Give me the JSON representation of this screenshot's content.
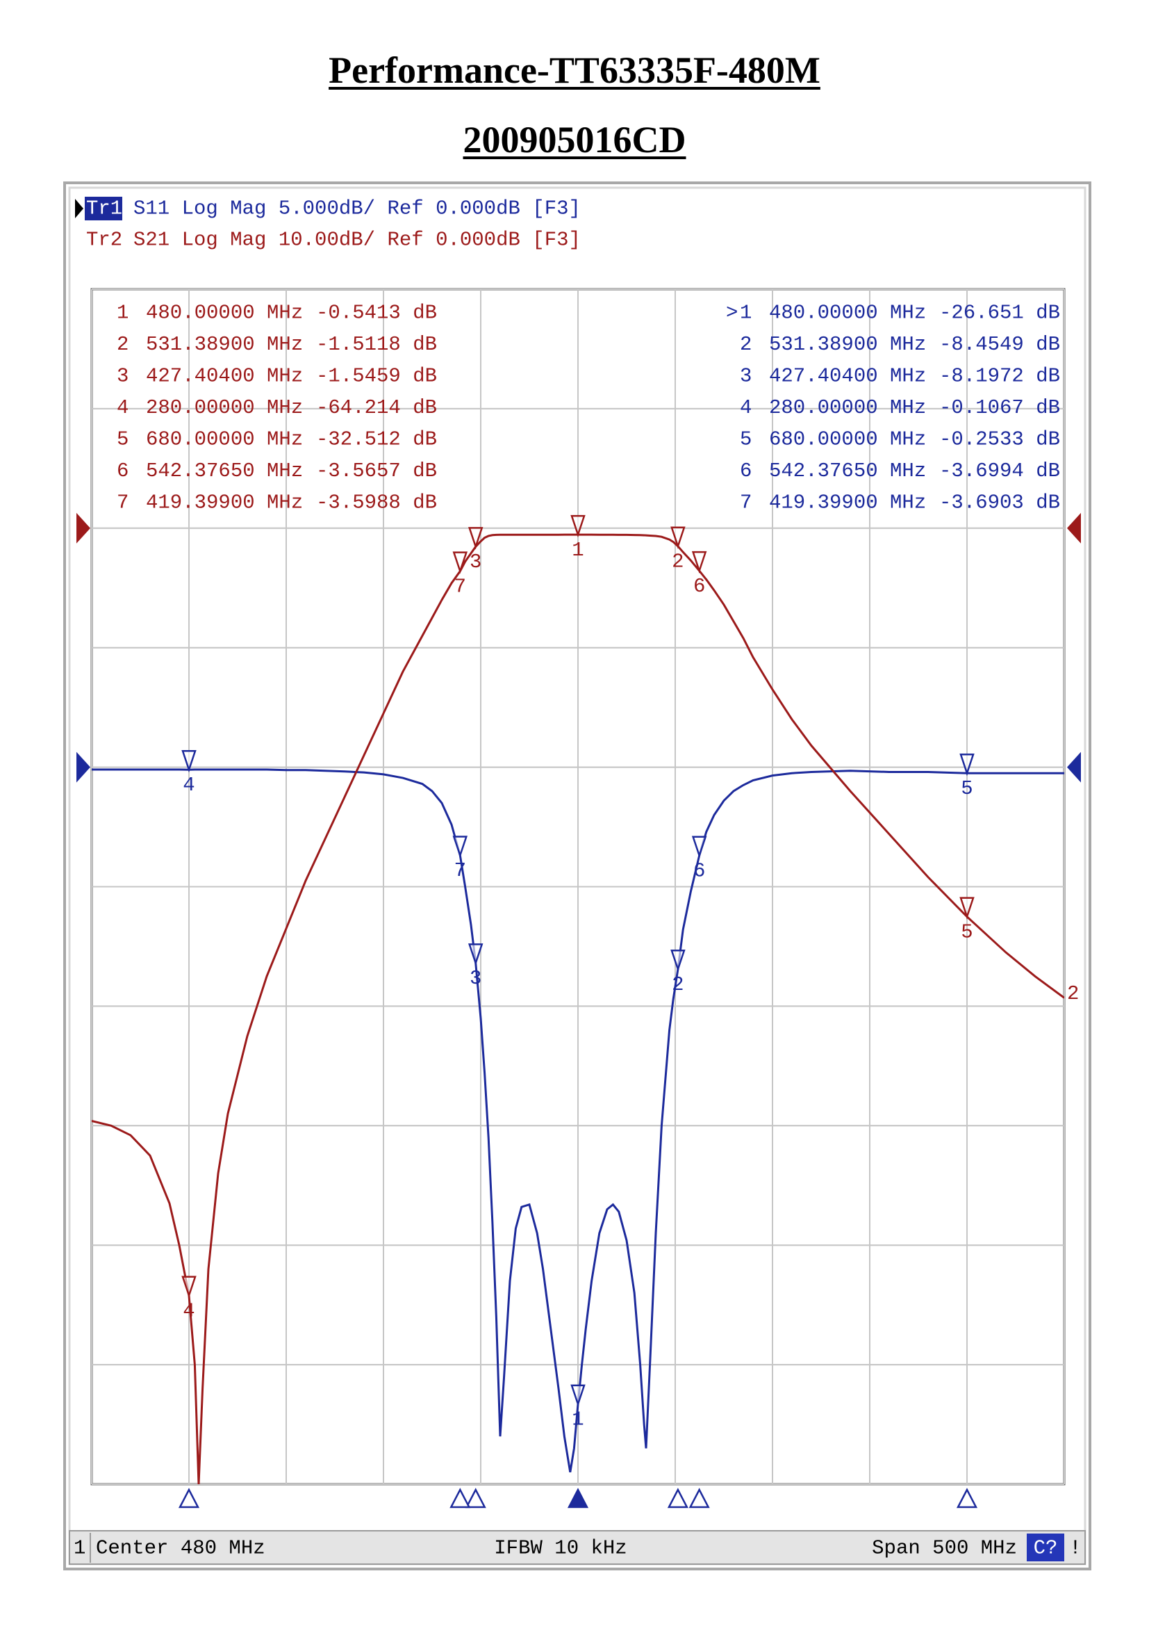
{
  "chart_data": {
    "type": "line",
    "title": "Performance-TT63335F-480M",
    "subtitle": "200905016CD",
    "grid": true,
    "xlim": [
      230,
      730
    ],
    "xticks": [
      230,
      280,
      330,
      380,
      430,
      480,
      530,
      580,
      630,
      680,
      730
    ],
    "ylim": [
      -30,
      20
    ],
    "yticks": [
      -30,
      -25,
      -20,
      -15,
      -10,
      -5,
      0,
      5,
      10,
      15,
      20
    ],
    "y2lim": [
      -80,
      20
    ],
    "y2ticks": [
      -80,
      -70,
      -60,
      -50,
      -40,
      -30,
      -20,
      -10,
      0,
      10,
      20
    ],
    "x": [
      230,
      240,
      250,
      260,
      270,
      275,
      280,
      283,
      285,
      287,
      290,
      295,
      300,
      310,
      320,
      330,
      340,
      350,
      360,
      370,
      380,
      390,
      400,
      405,
      410,
      415,
      419.399,
      422,
      425,
      427.404,
      430,
      432,
      434,
      436,
      438,
      440,
      442,
      445,
      448,
      451,
      455,
      459,
      462,
      466,
      470,
      473,
      476,
      478,
      480,
      482,
      484,
      487,
      491,
      495,
      498,
      501,
      505,
      509,
      512,
      514,
      515,
      517,
      520,
      523,
      527,
      529,
      531.389,
      534,
      538,
      542.3765,
      546,
      550,
      555,
      560,
      565,
      570,
      580,
      590,
      600,
      620,
      640,
      660,
      680,
      700,
      715,
      730
    ],
    "series": [
      {
        "trace": "Tr1",
        "name": "S11 Log Mag 5.000dB/ Ref 0.000dB [F3]",
        "color": "#1c2a9c",
        "axis": "y",
        "ref": 0,
        "values": [
          -0.1,
          -0.1,
          -0.1,
          -0.1,
          -0.1,
          -0.1,
          -0.1067,
          -0.1,
          -0.1,
          -0.1,
          -0.1,
          -0.1,
          -0.1,
          -0.1,
          -0.1,
          -0.12,
          -0.12,
          -0.15,
          -0.18,
          -0.22,
          -0.3,
          -0.45,
          -0.7,
          -1.0,
          -1.5,
          -2.4,
          -3.6903,
          -5,
          -6.6,
          -8.1972,
          -10.5,
          -12.8,
          -15.5,
          -19,
          -23,
          -28,
          -25.5,
          -21.5,
          -19.3,
          -18.4,
          -18.3,
          -19.5,
          -21,
          -23.5,
          -26,
          -28,
          -29.5,
          -28.5,
          -26.651,
          -25,
          -23.5,
          -21.5,
          -19.5,
          -18.5,
          -18.3,
          -18.6,
          -19.8,
          -22,
          -25,
          -27.5,
          -28.5,
          -25,
          -19.5,
          -15,
          -11,
          -9.7,
          -8.4549,
          -6.8,
          -5.2,
          -3.6994,
          -2.7,
          -2.0,
          -1.4,
          -1.0,
          -0.75,
          -0.55,
          -0.35,
          -0.25,
          -0.2,
          -0.15,
          -0.2,
          -0.2,
          -0.2533,
          -0.25,
          -0.25,
          -0.25
        ],
        "markers": [
          {
            "prefix": ">",
            "label": "1",
            "x": 480,
            "x_label": "480.00000 MHz",
            "y": -26.651,
            "y_label": "-26.651 dB"
          },
          {
            "label": "2",
            "x": 531.389,
            "x_label": "531.38900 MHz",
            "y": -8.4549,
            "y_label": "-8.4549 dB"
          },
          {
            "label": "3",
            "x": 427.404,
            "x_label": "427.40400 MHz",
            "y": -8.1972,
            "y_label": "-8.1972 dB"
          },
          {
            "label": "4",
            "x": 280,
            "x_label": "280.00000 MHz",
            "y": -0.1067,
            "y_label": "-0.1067 dB"
          },
          {
            "label": "5",
            "x": 680,
            "x_label": "680.00000 MHz",
            "y": -0.2533,
            "y_label": "-0.2533 dB"
          },
          {
            "label": "6",
            "x": 542.3765,
            "x_label": "542.37650 MHz",
            "y": -3.6994,
            "y_label": "-3.6994 dB"
          },
          {
            "label": "7",
            "x": 419.399,
            "x_label": "419.39900 MHz",
            "y": -3.6903,
            "y_label": "-3.6903 dB"
          }
        ]
      },
      {
        "trace": "Tr2",
        "name": "S21 Log Mag 10.00dB/ Ref 0.000dB [F3]",
        "color": "#9c1a1a",
        "axis": "y2",
        "ref": 0,
        "end_label": "2",
        "values": [
          -49.6,
          -50,
          -50.8,
          -52.5,
          -56.5,
          -60,
          -64.214,
          -70,
          -80,
          -72,
          -62,
          -54,
          -49,
          -42.5,
          -37.5,
          -33.5,
          -29.5,
          -26,
          -22.5,
          -19,
          -15.5,
          -12,
          -9,
          -7.5,
          -6,
          -4.6,
          -3.5988,
          -2.8,
          -2.1,
          -1.5459,
          -1.1,
          -0.8,
          -0.65,
          -0.58,
          -0.56,
          -0.55,
          -0.55,
          -0.55,
          -0.55,
          -0.55,
          -0.55,
          -0.55,
          -0.55,
          -0.55,
          -0.55,
          -0.54,
          -0.54,
          -0.54,
          -0.5413,
          -0.54,
          -0.54,
          -0.54,
          -0.55,
          -0.55,
          -0.55,
          -0.56,
          -0.56,
          -0.57,
          -0.58,
          -0.59,
          -0.6,
          -0.62,
          -0.65,
          -0.72,
          -0.95,
          -1.15,
          -1.5118,
          -2.0,
          -2.7,
          -3.5657,
          -4.3,
          -5.2,
          -6.4,
          -7.8,
          -9.2,
          -10.8,
          -13.5,
          -16,
          -18.2,
          -22,
          -25.6,
          -29.2,
          -32.512,
          -35.5,
          -37.5,
          -39.3
        ],
        "markers": [
          {
            "label": "1",
            "x": 480,
            "x_label": "480.00000 MHz",
            "y": -0.5413,
            "y_label": "-0.5413 dB"
          },
          {
            "label": "2",
            "x": 531.389,
            "x_label": "531.38900 MHz",
            "y": -1.5118,
            "y_label": "-1.5118 dB"
          },
          {
            "label": "3",
            "x": 427.404,
            "x_label": "427.40400 MHz",
            "y": -1.5459,
            "y_label": "-1.5459 dB"
          },
          {
            "label": "4",
            "x": 280,
            "x_label": "280.00000 MHz",
            "y": -64.214,
            "y_label": "-64.214 dB"
          },
          {
            "label": "5",
            "x": 680,
            "x_label": "680.00000 MHz",
            "y": -32.512,
            "y_label": "-32.512 dB"
          },
          {
            "label": "6",
            "x": 542.3765,
            "x_label": "542.37650 MHz",
            "y": -3.5657,
            "y_label": "-3.5657 dB"
          },
          {
            "label": "7",
            "x": 419.399,
            "x_label": "419.39900 MHz",
            "y": -3.5988,
            "y_label": "-3.5988 dB"
          }
        ]
      }
    ],
    "status": {
      "channel": "1",
      "center": "Center 480 MHz",
      "ifbw": "IFBW 10 kHz",
      "span": "Span 500 MHz",
      "cal": "C?",
      "flag": "!"
    }
  }
}
